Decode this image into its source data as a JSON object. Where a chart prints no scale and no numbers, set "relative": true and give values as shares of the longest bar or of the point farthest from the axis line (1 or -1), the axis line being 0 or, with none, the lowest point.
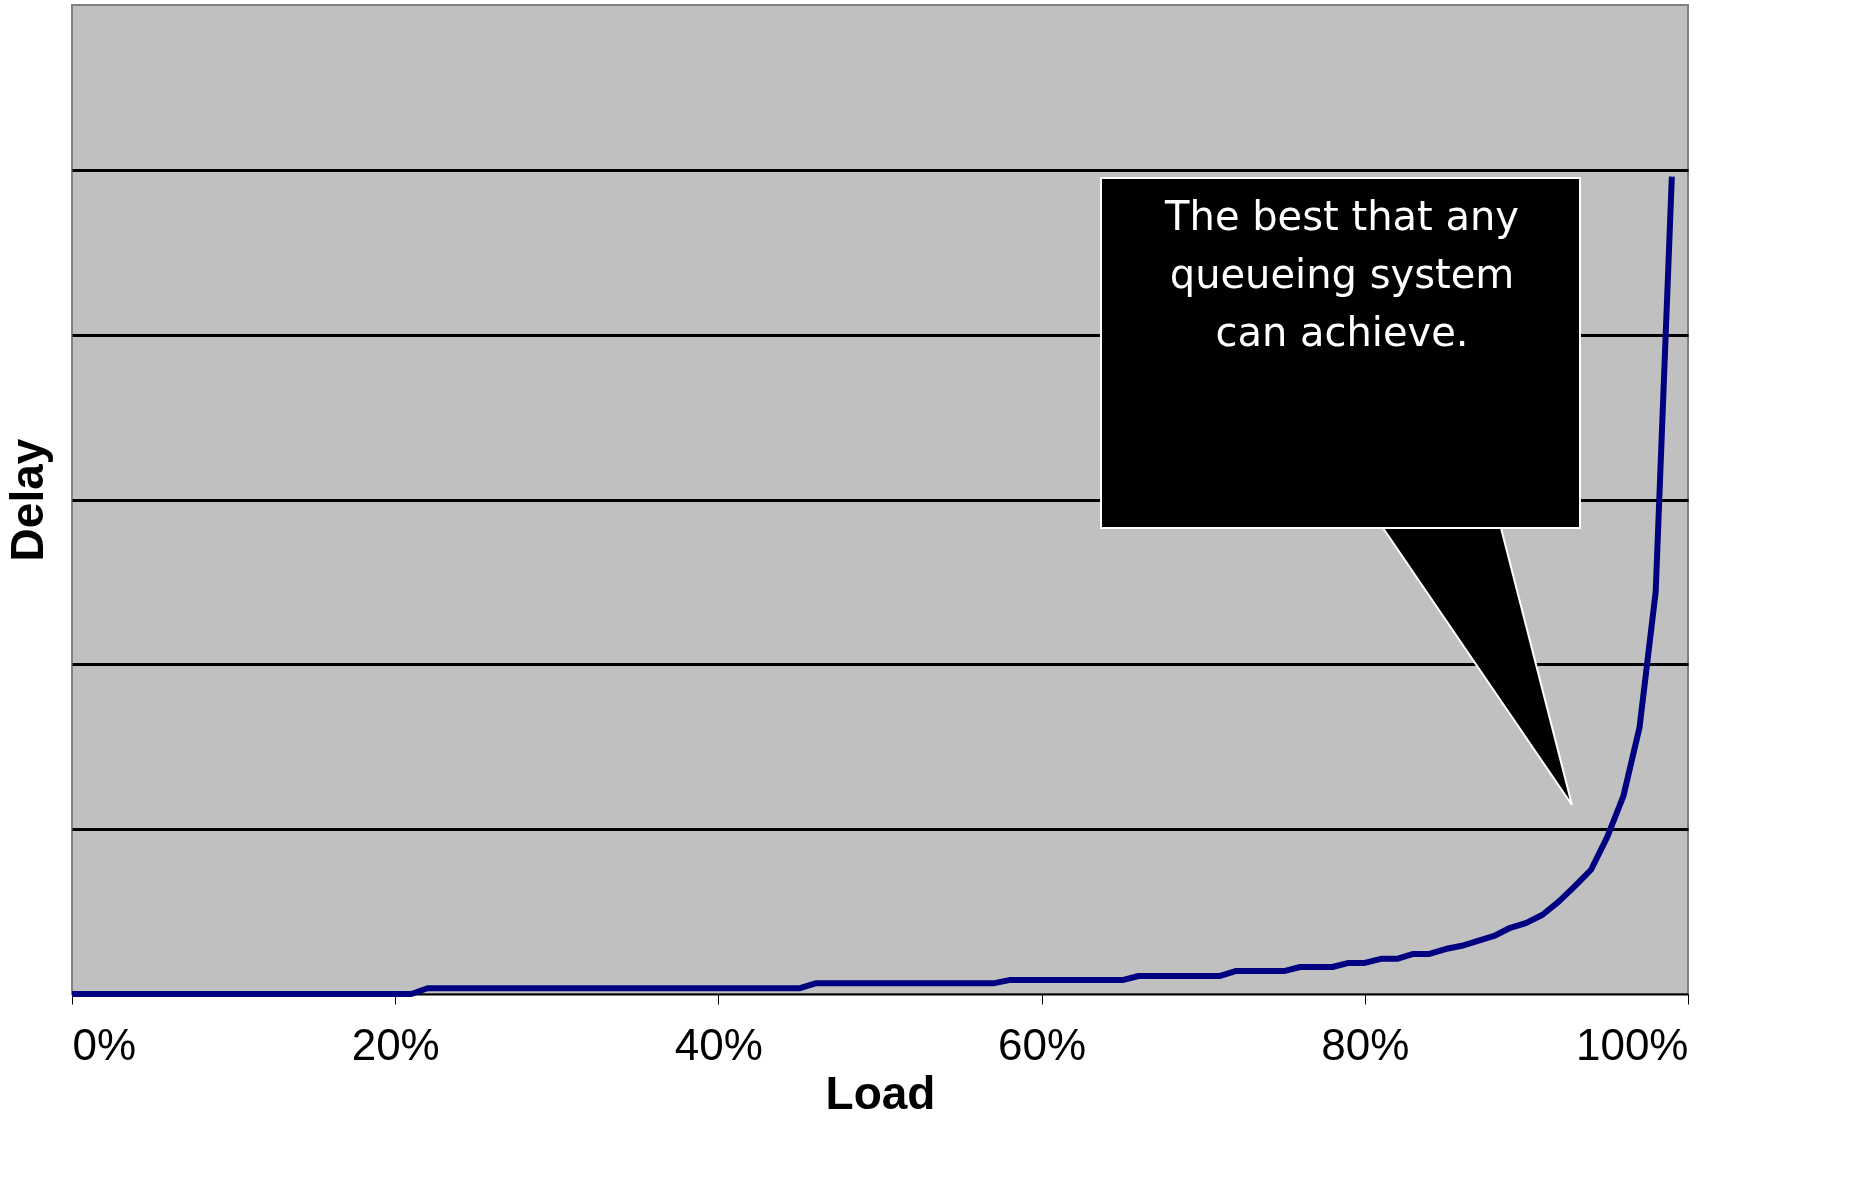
{
  "chart_data": {
    "type": "line",
    "relative": true,
    "xlabel": "Load",
    "ylabel": "Delay",
    "x": [
      0,
      21,
      22,
      45,
      46,
      57,
      58,
      65,
      66,
      71,
      72,
      75,
      76,
      78,
      79,
      80,
      81,
      82,
      83,
      84,
      85,
      86,
      87,
      88,
      89,
      90,
      91,
      92,
      93,
      94,
      95,
      96,
      97,
      98,
      99
    ],
    "series": [
      {
        "color": "#000080",
        "values": [
          0,
          0,
          0.007,
          0.007,
          0.013,
          0.013,
          0.017,
          0.017,
          0.022,
          0.022,
          0.028,
          0.028,
          0.033,
          0.033,
          0.038,
          0.038,
          0.043,
          0.043,
          0.049,
          0.049,
          0.055,
          0.059,
          0.065,
          0.071,
          0.081,
          0.087,
          0.097,
          0.113,
          0.132,
          0.152,
          0.192,
          0.242,
          0.326,
          0.492,
          1
        ]
      }
    ],
    "xlim": [
      0,
      100
    ],
    "xticks": [
      {
        "value": 0,
        "label": "0%"
      },
      {
        "value": 20,
        "label": "20%"
      },
      {
        "value": 40,
        "label": "40%"
      },
      {
        "value": 60,
        "label": "60%"
      },
      {
        "value": 80,
        "label": "80%"
      },
      {
        "value": 100,
        "label": "100%"
      }
    ],
    "grid": "y",
    "legend": false,
    "marker": "none",
    "line_style": "solid",
    "annotations": [
      "The best that any queueing system can achieve."
    ]
  }
}
